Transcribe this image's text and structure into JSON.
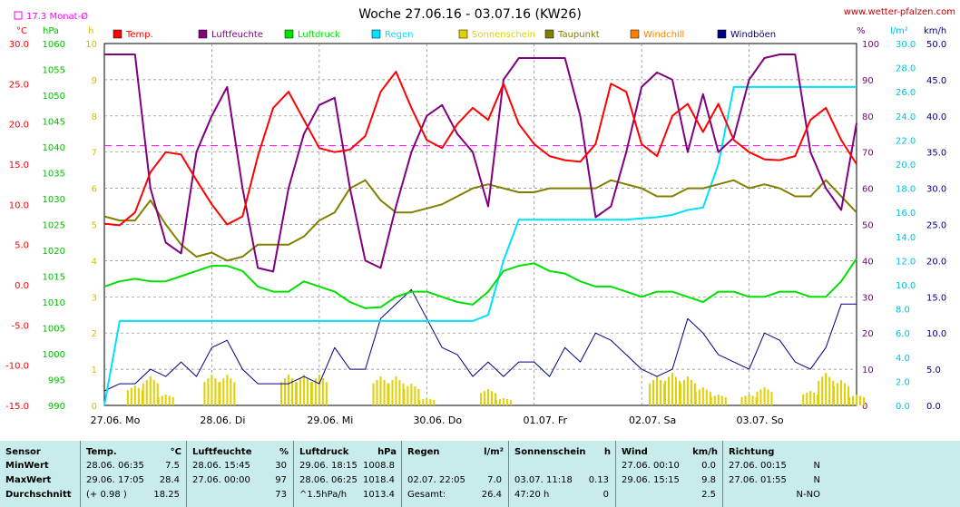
{
  "header": {
    "title": "Woche 27.06.16 - 03.07.16 (KW26)",
    "site": "www.wetter-pfalzen.com",
    "monthavg_label": "17.3 Monat-Ø"
  },
  "axes": {
    "units": {
      "temp": "°C",
      "hpa": "hPa",
      "h": "h",
      "pct": "%",
      "rain": "l/m²",
      "wind": "km/h"
    },
    "temp_ticks": [
      "30.0",
      "25.0",
      "20.0",
      "15.0",
      "10.0",
      "5.0",
      "0.0",
      "-5.0",
      "-10.0",
      "-15.0"
    ],
    "hpa_ticks": [
      "1060",
      "1055",
      "1050",
      "1045",
      "1040",
      "1035",
      "1030",
      "1025",
      "1020",
      "1015",
      "1010",
      "1005",
      "1000",
      "995",
      "990"
    ],
    "h_ticks": [
      "10",
      "9",
      "8",
      "7",
      "6",
      "5",
      "4",
      "3",
      "2",
      "1",
      "0"
    ],
    "pct_ticks": [
      "100",
      "90",
      "80",
      "70",
      "60",
      "50",
      "40",
      "30",
      "20",
      "10",
      "0"
    ],
    "rain_ticks": [
      "30.0",
      "28.0",
      "26.0",
      "24.0",
      "22.0",
      "20.0",
      "18.0",
      "16.0",
      "14.0",
      "12.0",
      "10.0",
      "8.0",
      "6.0",
      "4.0",
      "2.0",
      "0.0"
    ],
    "wind_ticks": [
      "50.0",
      "45.0",
      "40.0",
      "35.0",
      "30.0",
      "25.0",
      "20.0",
      "15.0",
      "10.0",
      "5.0",
      "0.0"
    ],
    "days": [
      "27.06. Mo",
      "28.06. Di",
      "29.06. Mi",
      "30.06. Do",
      "01.07. Fr",
      "02.07. Sa",
      "03.07. So"
    ]
  },
  "colors": {
    "temp": "#ff0000",
    "humidity": "#800080",
    "pressure": "#00e000",
    "rain": "#00e0ff",
    "sunshine": "#e0d000",
    "dewpoint": "#808000",
    "windchill": "#ff8000",
    "wind": "#000080",
    "monthavg": "#ff00ff",
    "grid": "#808080"
  },
  "chart_data": {
    "type": "line",
    "title": "Woche 27.06.16 - 03.07.16 (KW26)",
    "legend": [
      "Temp.",
      "Luftfeuchte",
      "Luftdruck",
      "Regen",
      "Sonnenschein",
      "Taupunkt",
      "Windchill",
      "Windböen"
    ],
    "x_hours_per_point": 3,
    "monthly_avg_temp": 17.3,
    "temp": [
      7.6,
      7.4,
      9.0,
      14.0,
      16.5,
      16.2,
      13.0,
      10.0,
      7.5,
      8.5,
      16.0,
      22.0,
      24.0,
      20.5,
      17.0,
      16.5,
      16.8,
      18.5,
      24.0,
      26.5,
      22.0,
      18.0,
      17.0,
      20.0,
      22.0,
      20.5,
      25.0,
      20.0,
      17.5,
      16.0,
      15.5,
      15.3,
      17.5,
      25.0,
      24.0,
      17.5,
      16.0,
      21.0,
      22.5,
      19.0,
      22.5,
      18.0,
      16.5,
      15.6,
      15.5,
      16.0,
      20.5,
      22.0,
      18.0,
      15.0
    ],
    "humidity": [
      97,
      97,
      97,
      60,
      45,
      42,
      70,
      80,
      88,
      60,
      38,
      37,
      60,
      75,
      83,
      85,
      60,
      40,
      38,
      55,
      70,
      80,
      83,
      75,
      70,
      55,
      90,
      96,
      96,
      96,
      96,
      80,
      52,
      55,
      70,
      88,
      92,
      90,
      70,
      86,
      70,
      74,
      90,
      96,
      97,
      97,
      70,
      60,
      54,
      78
    ],
    "pressure": [
      1013,
      1014,
      1014.5,
      1014,
      1014,
      1015,
      1016,
      1017,
      1017,
      1016,
      1013,
      1012,
      1012,
      1014,
      1013,
      1012,
      1010,
      1008.8,
      1009,
      1011,
      1012,
      1012,
      1011,
      1010,
      1009.5,
      1012,
      1016,
      1017,
      1017.5,
      1016,
      1015.5,
      1014,
      1013,
      1013,
      1012,
      1011,
      1012,
      1012,
      1011,
      1010,
      1012,
      1012,
      1011,
      1011,
      1012,
      1012,
      1011,
      1011,
      1014,
      1018.4
    ],
    "dewpoint": [
      8.5,
      8.0,
      8.0,
      10.5,
      7.5,
      5.0,
      3.5,
      4.0,
      3.0,
      3.5,
      5.0,
      5.0,
      5.0,
      6.0,
      8.0,
      9.0,
      12.0,
      13.0,
      10.5,
      9.0,
      9.0,
      9.5,
      10.0,
      11.0,
      12.0,
      12.5,
      12.0,
      11.5,
      11.5,
      12.0,
      12.0,
      12.0,
      12.0,
      13.0,
      12.5,
      12.0,
      11.0,
      11.0,
      12.0,
      12.0,
      12.5,
      13.0,
      12.0,
      12.5,
      12.0,
      11.0,
      11.0,
      13.0,
      11.0,
      9.0
    ],
    "rain_cumulative": [
      0,
      7.0,
      7.0,
      7.0,
      7.0,
      7.0,
      7.0,
      7.0,
      7.0,
      7.0,
      7.0,
      7.0,
      7.0,
      7.0,
      7.0,
      7.0,
      7.0,
      7.0,
      7.0,
      7.0,
      7.0,
      7.0,
      7.0,
      7.0,
      7.0,
      7.5,
      12.0,
      15.4,
      15.4,
      15.4,
      15.4,
      15.4,
      15.4,
      15.4,
      15.4,
      15.5,
      15.6,
      15.8,
      16.2,
      16.4,
      20.0,
      26.4,
      26.4,
      26.4,
      26.4,
      26.4,
      26.4,
      26.4,
      26.4,
      26.4
    ],
    "wind_gusts": [
      2,
      3,
      3,
      5,
      4,
      6,
      4,
      8,
      9,
      5,
      3,
      3,
      3,
      4,
      3,
      8,
      5,
      5,
      12,
      14,
      16,
      12,
      8,
      7,
      4,
      6,
      4,
      6,
      6,
      4,
      8,
      6,
      10,
      9,
      7,
      5,
      4,
      5,
      12,
      10,
      7,
      6,
      5,
      10,
      9,
      6,
      5,
      8,
      14,
      14
    ],
    "sunshine_hours": [
      0,
      0,
      0.55,
      0.8,
      0.3,
      0,
      0,
      0.85,
      0.85,
      0,
      0,
      0,
      0.85,
      0.85,
      0.85,
      0,
      0,
      0,
      0.8,
      0.8,
      0.6,
      0.2,
      0,
      0,
      0,
      0.45,
      0.2,
      0,
      0,
      0,
      0,
      0,
      0,
      0,
      0,
      0,
      0.8,
      0.9,
      0.8,
      0.5,
      0.3,
      0,
      0.3,
      0.5,
      0,
      0,
      0.4,
      0.9,
      0.7,
      0.3
    ]
  },
  "stats": {
    "headers": [
      {
        "label": "Sensor",
        "unit": ""
      },
      {
        "label": "Temp.",
        "unit": "°C"
      },
      {
        "label": "Luftfeuchte",
        "unit": "%"
      },
      {
        "label": "Luftdruck",
        "unit": "hPa"
      },
      {
        "label": "Regen",
        "unit": "l/m²"
      },
      {
        "label": "Sonnenschein",
        "unit": "h"
      },
      {
        "label": "Wind",
        "unit": "km/h"
      },
      {
        "label": "Richtung",
        "unit": ""
      }
    ],
    "row_labels": [
      "MinWert",
      "MaxWert",
      "Durchschnitt"
    ],
    "temp": [
      [
        "28.06.  06:35",
        "7.5"
      ],
      [
        "29.06.  17:05",
        "28.4"
      ],
      [
        "(+ 0.98 )",
        "18.25"
      ]
    ],
    "hum": [
      [
        "28.06.  15:45",
        "30"
      ],
      [
        "27.06.  00:00",
        "97"
      ],
      [
        "",
        "73"
      ]
    ],
    "press": [
      [
        "29.06.  18:15",
        "1008.8"
      ],
      [
        "28.06.  06:25",
        "1018.4"
      ],
      [
        "^1.5hPa/h",
        "1013.4"
      ]
    ],
    "rain": [
      [
        "",
        ""
      ],
      [
        "02.07.  22:05",
        "7.0"
      ],
      [
        "Gesamt:",
        "26.4"
      ]
    ],
    "sun": [
      [
        "",
        ""
      ],
      [
        "03.07.  11:18",
        "0.13"
      ],
      [
        "47:20 h",
        "0"
      ]
    ],
    "wind": [
      [
        "27.06.  00:10",
        "0.0"
      ],
      [
        "29.06.  15:15",
        "9.8"
      ],
      [
        "",
        "2.5"
      ]
    ],
    "dir": [
      [
        "27.06.  00:15",
        "N"
      ],
      [
        "27.06.  01:55",
        "N"
      ],
      [
        "",
        "N-NO"
      ]
    ]
  }
}
